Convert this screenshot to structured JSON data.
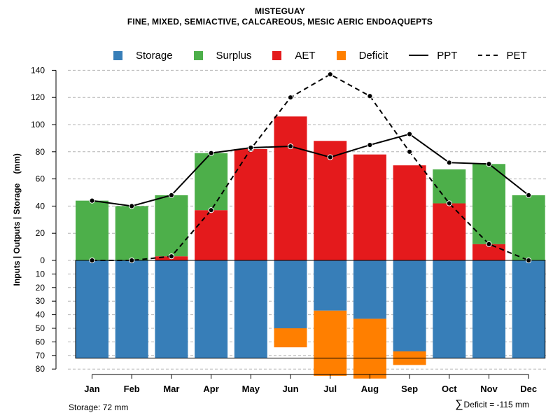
{
  "title": "MISTEGUAY",
  "subtitle": "FINE, MIXED, SEMIACTIVE, CALCAREOUS, MESIC AERIC ENDOAQUEPTS",
  "legend": {
    "storage": "Storage",
    "surplus": "Surplus",
    "aet": "AET",
    "deficit": "Deficit",
    "ppt": "PPT",
    "pet": "PET"
  },
  "colors": {
    "storage": "#377EB8",
    "surplus": "#4DAF4A",
    "aet": "#E41A1C",
    "deficit": "#FF7F00"
  },
  "footer": {
    "storage_text": "Storage: 72 mm",
    "sigma": "∑",
    "deficit_text": "Deficit = -115 mm"
  },
  "chart_data": {
    "type": "bar",
    "title": "MISTEGUAY",
    "subtitle": "FINE, MIXED, SEMIACTIVE, CALCAREOUS, MESIC AERIC ENDOAQUEPTS",
    "ylabel": "Inputs | Outputs | Storage    (mm)",
    "xlabel": "",
    "categories": [
      "Jan",
      "Feb",
      "Mar",
      "Apr",
      "May",
      "Jun",
      "Jul",
      "Aug",
      "Sep",
      "Oct",
      "Nov",
      "Dec"
    ],
    "ylim_upper": [
      0,
      140
    ],
    "ylim_lower": [
      0,
      80
    ],
    "yticks_upper": [
      "0",
      "20",
      "40",
      "60",
      "80",
      "100",
      "120",
      "140"
    ],
    "yticks_lower": [
      "10",
      "20",
      "30",
      "40",
      "50",
      "60",
      "70",
      "80"
    ],
    "grid": true,
    "legend_position": "top",
    "series": [
      {
        "name": "AET",
        "values": [
          0,
          0,
          3,
          37,
          82,
          106,
          88,
          78,
          70,
          42,
          12,
          0
        ]
      },
      {
        "name": "Surplus",
        "values": [
          44,
          40,
          45,
          42,
          0,
          0,
          0,
          0,
          0,
          25,
          59,
          48
        ]
      },
      {
        "name": "Storage",
        "values": [
          72,
          72,
          72,
          72,
          72,
          50,
          37,
          43,
          67,
          72,
          72,
          72
        ]
      },
      {
        "name": "Deficit",
        "values": [
          0,
          0,
          0,
          0,
          0,
          14,
          48,
          44,
          10,
          0,
          0,
          0
        ]
      },
      {
        "name": "PPT",
        "values": [
          44,
          40,
          48,
          79,
          83,
          84,
          76,
          85,
          93,
          72,
          71,
          48
        ]
      },
      {
        "name": "PET",
        "values": [
          0,
          0,
          3,
          37,
          82,
          120,
          137,
          121,
          80,
          42,
          12,
          0
        ]
      }
    ],
    "storage_capacity": 72,
    "total_deficit": -115
  }
}
